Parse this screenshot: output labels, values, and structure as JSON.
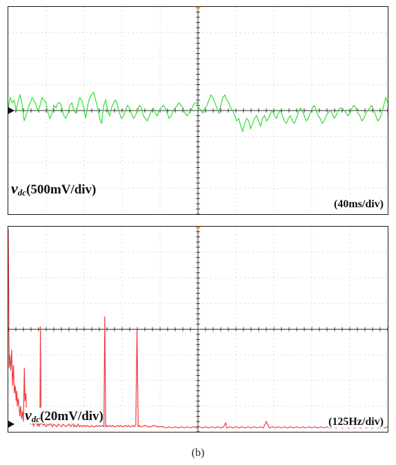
{
  "caption": "(b)",
  "colors": {
    "grid": "#b8b8b8",
    "axis": "#333333",
    "frame": "#1a1a1a",
    "top_trace": "#33dd33",
    "bottom_trace": "#ee3b3b",
    "trigger_marker": "#f0a020"
  },
  "chart_data": [
    {
      "type": "line",
      "title": "",
      "signal_symbol": "v",
      "signal_subscript": "dc",
      "signal_scale": "(500mV/div)",
      "timebase": "(40ms/div)",
      "divisions": {
        "x": 10,
        "y": 8
      },
      "xlim": [
        0,
        10
      ],
      "ylim": [
        -4,
        4
      ],
      "grid": true,
      "series": [
        {
          "values": [
            0.1,
            0.5,
            0.3,
            0.4,
            0.0,
            0.4,
            0.6,
            0.2,
            -0.4,
            -0.2,
            0.1,
            0.3,
            0.5,
            0.4,
            0.2,
            0.0,
            0.2,
            0.5,
            0.4,
            0.3,
            -0.1,
            -0.3,
            -0.1,
            0.2,
            0.1,
            0.3,
            0.3,
            0.1,
            -0.2,
            -0.3,
            -0.1,
            0.2,
            0.3,
            0.0,
            -0.1,
            0.2,
            0.5,
            0.4,
            0.1,
            -0.3,
            0.2,
            0.5,
            0.6,
            0.7,
            0.4,
            0.1,
            -0.3,
            -0.5,
            0.2,
            0.4,
            0.0,
            -0.2,
            0.1,
            0.3,
            0.4,
            0.2,
            -0.1,
            -0.3,
            -0.2,
            0.0,
            0.2,
            0.1,
            -0.1,
            -0.3,
            -0.2,
            0.0,
            0.2,
            0.1,
            -0.2,
            -0.3,
            -0.4,
            -0.2,
            0.0,
            0.1,
            -0.1,
            -0.2,
            0.0,
            0.1,
            0.2,
            0.1,
            -0.1,
            -0.3,
            -0.2,
            0.0,
            0.1,
            0.2,
            0.3,
            0.2,
            0.1,
            -0.1,
            -0.2,
            -0.1,
            0.0,
            0.2,
            0.3,
            0.3,
            0.1,
            0.0,
            -0.1,
            0.1,
            0.2,
            0.4,
            0.6,
            0.5,
            0.3,
            0.1,
            -0.1,
            0.2,
            0.5,
            0.6,
            0.4,
            0.3,
            0.1,
            0.0,
            -0.2,
            -0.4,
            -0.3,
            -0.6,
            -0.8,
            -0.5,
            -0.3,
            -0.4,
            -0.7,
            -0.5,
            -0.3,
            -0.2,
            -0.4,
            -0.6,
            -0.3,
            -0.2,
            -0.4,
            -0.3,
            -0.1,
            0.0,
            -0.2,
            -0.3,
            -0.1,
            0.0,
            -0.2,
            -0.4,
            -0.5,
            -0.3,
            -0.2,
            -0.4,
            -0.5,
            -0.3,
            -0.1,
            0.1,
            0.0,
            -0.2,
            -0.4,
            -0.3,
            -0.1,
            0.1,
            0.2,
            0.0,
            -0.2,
            -0.3,
            -0.5,
            -0.4,
            -0.2,
            -0.1,
            0.0,
            -0.1,
            -0.3,
            -0.2,
            0.0,
            0.1,
            0.1,
            0.0,
            -0.1,
            -0.2,
            -0.1,
            0.1,
            0.2,
            0.1,
            -0.1,
            -0.2,
            -0.4,
            -0.3,
            -0.1,
            0.0,
            0.1,
            0.2,
            0.0,
            -0.2,
            -0.4,
            -0.3,
            -0.1,
            0.2,
            0.5,
            0.3
          ]
        }
      ]
    },
    {
      "type": "line",
      "title": "",
      "signal_symbol": "v",
      "signal_subscript": "dc",
      "signal_scale": "(20mV/div)",
      "freq_scale": "(125Hz/div)",
      "divisions": {
        "x": 10,
        "y": 8
      },
      "xlim": [
        0,
        1250
      ],
      "ylim": [
        0,
        8
      ],
      "grid": true,
      "series": [
        {
          "points": [
            [
              0,
              7.9
            ],
            [
              3,
              2.5
            ],
            [
              5,
              3.0
            ],
            [
              8,
              2.4
            ],
            [
              11,
              3.2
            ],
            [
              14,
              1.8
            ],
            [
              17,
              2.6
            ],
            [
              20,
              1.5
            ],
            [
              23,
              1.8
            ],
            [
              26,
              1.2
            ],
            [
              28,
              1.6
            ],
            [
              30,
              1.0
            ],
            [
              33,
              1.3
            ],
            [
              36,
              0.9
            ],
            [
              38,
              0.6
            ],
            [
              41,
              1.0
            ],
            [
              44,
              0.5
            ],
            [
              47,
              0.8
            ],
            [
              50,
              0.4
            ],
            [
              53,
              2.5
            ],
            [
              55,
              1.2
            ],
            [
              58,
              1.5
            ],
            [
              61,
              0.6
            ],
            [
              64,
              0.5
            ],
            [
              67,
              0.4
            ],
            [
              70,
              0.6
            ],
            [
              73,
              0.3
            ],
            [
              76,
              0.5
            ],
            [
              79,
              0.3
            ],
            [
              82,
              0.4
            ],
            [
              84,
              0.2
            ],
            [
              87,
              0.5
            ],
            [
              90,
              0.3
            ],
            [
              93,
              0.4
            ],
            [
              96,
              0.25
            ],
            [
              99,
              0.35
            ],
            [
              101,
              0.2
            ],
            [
              104,
              0.3
            ],
            [
              106,
              4.1
            ],
            [
              108,
              0.3
            ],
            [
              112,
              0.35
            ],
            [
              116,
              0.25
            ],
            [
              120,
              0.3
            ],
            [
              125,
              0.2
            ],
            [
              130,
              0.3
            ],
            [
              135,
              0.25
            ],
            [
              140,
              0.35
            ],
            [
              145,
              0.2
            ],
            [
              150,
              0.3
            ],
            [
              155,
              0.25
            ],
            [
              160,
              0.2
            ],
            [
              165,
              0.3
            ],
            [
              170,
              0.25
            ],
            [
              175,
              0.2
            ],
            [
              180,
              0.3
            ],
            [
              185,
              0.25
            ],
            [
              190,
              0.2
            ],
            [
              195,
              0.25
            ],
            [
              200,
              0.3
            ],
            [
              205,
              0.2
            ],
            [
              210,
              0.25
            ],
            [
              213,
              0.9
            ],
            [
              216,
              0.2
            ],
            [
              220,
              0.25
            ],
            [
              225,
              0.2
            ],
            [
              230,
              0.3
            ],
            [
              235,
              0.2
            ],
            [
              240,
              0.25
            ],
            [
              245,
              0.2
            ],
            [
              250,
              0.25
            ],
            [
              255,
              0.2
            ],
            [
              260,
              0.25
            ],
            [
              265,
              0.2
            ],
            [
              270,
              0.2
            ],
            [
              275,
              0.25
            ],
            [
              280,
              0.2
            ],
            [
              285,
              0.2
            ],
            [
              290,
              0.25
            ],
            [
              295,
              0.2
            ],
            [
              300,
              0.25
            ],
            [
              305,
              0.2
            ],
            [
              310,
              0.25
            ],
            [
              315,
              0.2
            ],
            [
              318,
              4.5
            ],
            [
              321,
              0.2
            ],
            [
              325,
              0.25
            ],
            [
              330,
              0.2
            ],
            [
              335,
              0.25
            ],
            [
              340,
              0.2
            ],
            [
              345,
              0.25
            ],
            [
              350,
              0.2
            ],
            [
              355,
              0.2
            ],
            [
              360,
              0.25
            ],
            [
              365,
              0.2
            ],
            [
              370,
              0.25
            ],
            [
              375,
              0.2
            ],
            [
              380,
              0.2
            ],
            [
              385,
              0.25
            ],
            [
              390,
              0.2
            ],
            [
              395,
              0.25
            ],
            [
              400,
              0.2
            ],
            [
              405,
              0.2
            ],
            [
              410,
              0.25
            ],
            [
              415,
              0.2
            ],
            [
              420,
              0.25
            ],
            [
              424,
              4.0
            ],
            [
              428,
              0.2
            ],
            [
              432,
              0.25
            ],
            [
              436,
              0.2
            ],
            [
              440,
              0.2
            ],
            [
              450,
              0.25
            ],
            [
              460,
              0.2
            ],
            [
              470,
              0.2
            ],
            [
              480,
              0.25
            ],
            [
              490,
              0.2
            ],
            [
              500,
              0.2
            ],
            [
              510,
              0.2
            ],
            [
              520,
              0.15
            ],
            [
              530,
              0.2
            ],
            [
              540,
              0.15
            ],
            [
              550,
              0.2
            ],
            [
              560,
              0.15
            ],
            [
              570,
              0.2
            ],
            [
              580,
              0.15
            ],
            [
              590,
              0.2
            ],
            [
              600,
              0.15
            ],
            [
              610,
              0.2
            ],
            [
              620,
              0.15
            ],
            [
              630,
              0.2
            ],
            [
              640,
              0.15
            ],
            [
              650,
              0.2
            ],
            [
              660,
              0.15
            ],
            [
              670,
              0.2
            ],
            [
              680,
              0.15
            ],
            [
              690,
              0.2
            ],
            [
              700,
              0.15
            ],
            [
              710,
              0.2
            ],
            [
              716,
              0.35
            ],
            [
              720,
              0.15
            ],
            [
              730,
              0.2
            ],
            [
              740,
              0.15
            ],
            [
              750,
              0.2
            ],
            [
              760,
              0.15
            ],
            [
              770,
              0.2
            ],
            [
              780,
              0.15
            ],
            [
              790,
              0.2
            ],
            [
              800,
              0.15
            ],
            [
              810,
              0.2
            ],
            [
              820,
              0.15
            ],
            [
              830,
              0.2
            ],
            [
              840,
              0.15
            ],
            [
              850,
              0.4
            ],
            [
              860,
              0.15
            ],
            [
              870,
              0.2
            ],
            [
              880,
              0.15
            ],
            [
              890,
              0.2
            ],
            [
              900,
              0.15
            ],
            [
              910,
              0.2
            ],
            [
              920,
              0.15
            ],
            [
              930,
              0.2
            ],
            [
              940,
              0.15
            ],
            [
              950,
              0.2
            ],
            [
              960,
              0.15
            ],
            [
              970,
              0.2
            ],
            [
              980,
              0.15
            ],
            [
              990,
              0.2
            ],
            [
              1000,
              0.15
            ],
            [
              1010,
              0.2
            ],
            [
              1020,
              0.15
            ],
            [
              1030,
              0.2
            ],
            [
              1040,
              0.15
            ],
            [
              1050,
              0.2
            ],
            [
              1060,
              0.15
            ],
            [
              1070,
              0.2
            ],
            [
              1080,
              0.15
            ],
            [
              1090,
              0.2
            ],
            [
              1100,
              0.15
            ],
            [
              1110,
              0.2
            ],
            [
              1120,
              0.15
            ],
            [
              1130,
              0.2
            ],
            [
              1140,
              0.15
            ],
            [
              1150,
              0.2
            ],
            [
              1160,
              0.15
            ],
            [
              1170,
              0.2
            ],
            [
              1180,
              0.15
            ],
            [
              1190,
              0.2
            ],
            [
              1200,
              0.15
            ],
            [
              1210,
              0.2
            ],
            [
              1220,
              0.15
            ],
            [
              1230,
              0.2
            ],
            [
              1240,
              0.15
            ],
            [
              1250,
              0.2
            ]
          ]
        }
      ]
    }
  ]
}
